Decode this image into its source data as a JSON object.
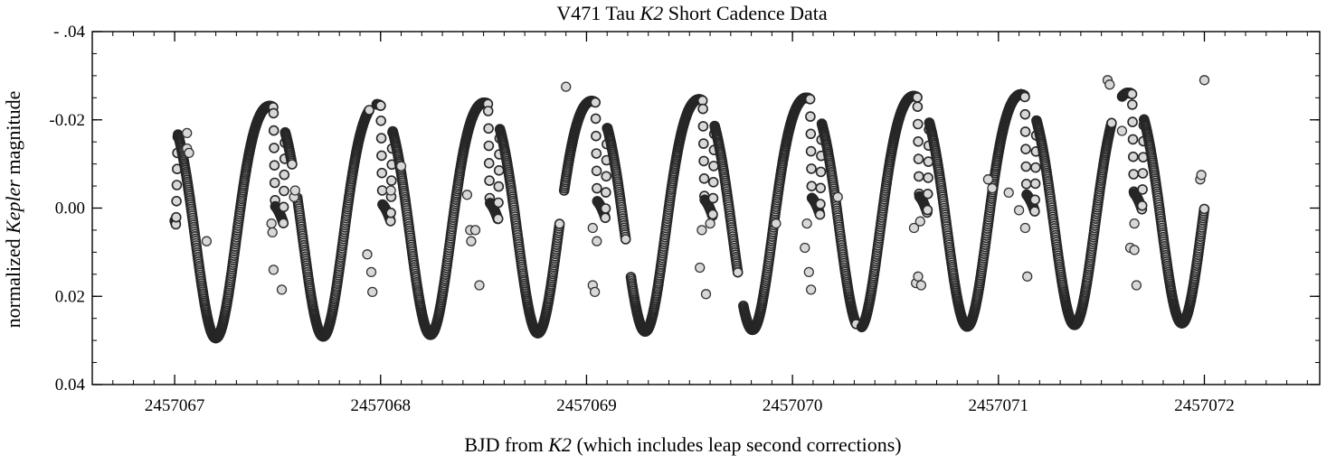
{
  "chart_data": {
    "type": "scatter",
    "title": {
      "prefix": "V471 Tau ",
      "italic": "K2",
      "suffix": " Short Cadence Data"
    },
    "xlabel": {
      "prefix": "BJD from ",
      "italic": "K2",
      "suffix": " (which includes leap second corrections)"
    },
    "ylabel": {
      "prefix": "normalized ",
      "italic": "Kepler",
      "suffix": " magnitude"
    },
    "xlim": [
      2457066.6,
      2457072.56
    ],
    "ylim": [
      0.04,
      -0.04
    ],
    "y_inverted": true,
    "x_major_ticks": [
      2457067,
      2457068,
      2457069,
      2457070,
      2457071,
      2457072
    ],
    "x_tick_labels": [
      "2457067",
      "2457068",
      "2457069",
      "2457070",
      "2457071",
      "2457072"
    ],
    "x_minor_step": 0.1,
    "y_major_ticks": [
      -0.04,
      -0.02,
      0.0,
      0.02,
      0.04
    ],
    "y_tick_labels": [
      "- .04",
      "-0.02",
      "0.00",
      "0.02",
      "0.04"
    ],
    "y_minor_step": 0.005,
    "grid": false,
    "legend": "none",
    "marker": {
      "fill": "#d8d8d8",
      "edge": "#262626"
    },
    "series": [
      {
        "x_start": 2457067.0,
        "x_end": 2457072.0,
        "x_step": 0.0015,
        "components": {
          "sinusoid_amplitude": 0.0262,
          "sinusoid_period_days": 0.5212,
          "phase_of_minimum_brightness_day": 2457067.2,
          "secondary_harmonic_amplitude": 0.0034,
          "trend_per_day": -0.00072,
          "eclipse_period_days": 0.5212,
          "first_eclipse_mid": 2457067.508,
          "eclipse_depth": 0.022,
          "eclipse_halfwidth_days": 0.0285,
          "eclipse_ingress_days": 0.0085
        },
        "data_gaps": [
          [
            2457067.57,
            2457067.595
          ],
          [
            2457067.945,
            2457067.98
          ],
          [
            2457068.87,
            2457068.89
          ],
          [
            2457069.19,
            2457069.215
          ],
          [
            2457069.735,
            2457069.76
          ],
          [
            2457070.31,
            2457070.335
          ],
          [
            2457071.55,
            2457071.6
          ]
        ],
        "outliers": [
          {
            "x": 2457067.06,
            "y": -0.017
          },
          {
            "x": 2457067.06,
            "y": -0.0135
          },
          {
            "x": 2457067.07,
            "y": -0.0125
          },
          {
            "x": 2457067.155,
            "y": 0.0075
          },
          {
            "x": 2457067.47,
            "y": 0.0035
          },
          {
            "x": 2457067.475,
            "y": 0.0055
          },
          {
            "x": 2457067.48,
            "y": 0.014
          },
          {
            "x": 2457067.52,
            "y": 0.0185
          },
          {
            "x": 2457067.58,
            "y": -0.0025
          },
          {
            "x": 2457067.585,
            "y": -0.004
          },
          {
            "x": 2457067.935,
            "y": 0.0105
          },
          {
            "x": 2457067.955,
            "y": 0.0145
          },
          {
            "x": 2457067.96,
            "y": 0.019
          },
          {
            "x": 2457068.1,
            "y": -0.0095
          },
          {
            "x": 2457068.05,
            "y": -0.004
          },
          {
            "x": 2457068.42,
            "y": -0.003
          },
          {
            "x": 2457068.435,
            "y": 0.005
          },
          {
            "x": 2457068.44,
            "y": 0.0075
          },
          {
            "x": 2457068.46,
            "y": 0.005
          },
          {
            "x": 2457068.48,
            "y": 0.0175
          },
          {
            "x": 2457068.9,
            "y": -0.0275
          },
          {
            "x": 2457069.03,
            "y": 0.0045
          },
          {
            "x": 2457069.05,
            "y": 0.0075
          },
          {
            "x": 2457069.03,
            "y": 0.0175
          },
          {
            "x": 2457069.04,
            "y": 0.019
          },
          {
            "x": 2457069.55,
            "y": 0.0135
          },
          {
            "x": 2457069.56,
            "y": 0.005
          },
          {
            "x": 2457069.58,
            "y": 0.0195
          },
          {
            "x": 2457069.6,
            "y": 0.0035
          },
          {
            "x": 2457069.92,
            "y": 0.0035
          },
          {
            "x": 2457070.06,
            "y": 0.009
          },
          {
            "x": 2457070.07,
            "y": 0.0035
          },
          {
            "x": 2457070.08,
            "y": 0.0145
          },
          {
            "x": 2457070.09,
            "y": 0.0185
          },
          {
            "x": 2457070.22,
            "y": -0.0025
          },
          {
            "x": 2457070.59,
            "y": 0.0045
          },
          {
            "x": 2457070.6,
            "y": 0.017
          },
          {
            "x": 2457070.61,
            "y": 0.0155
          },
          {
            "x": 2457070.62,
            "y": 0.003
          },
          {
            "x": 2457070.625,
            "y": 0.0175
          },
          {
            "x": 2457070.95,
            "y": -0.0065
          },
          {
            "x": 2457070.97,
            "y": -0.0045
          },
          {
            "x": 2457071.05,
            "y": -0.0035
          },
          {
            "x": 2457071.1,
            "y": 0.0005
          },
          {
            "x": 2457071.13,
            "y": 0.0045
          },
          {
            "x": 2457071.14,
            "y": 0.0155
          },
          {
            "x": 2457071.53,
            "y": -0.029
          },
          {
            "x": 2457071.54,
            "y": -0.028
          },
          {
            "x": 2457071.6,
            "y": -0.0175
          },
          {
            "x": 2457071.64,
            "y": 0.009
          },
          {
            "x": 2457071.66,
            "y": 0.0095
          },
          {
            "x": 2457071.67,
            "y": 0.0175
          },
          {
            "x": 2457071.66,
            "y": 0.0035
          },
          {
            "x": 2457071.98,
            "y": -0.0065
          },
          {
            "x": 2457071.985,
            "y": -0.0075
          },
          {
            "x": 2457072.0,
            "y": -0.029
          }
        ]
      }
    ]
  }
}
